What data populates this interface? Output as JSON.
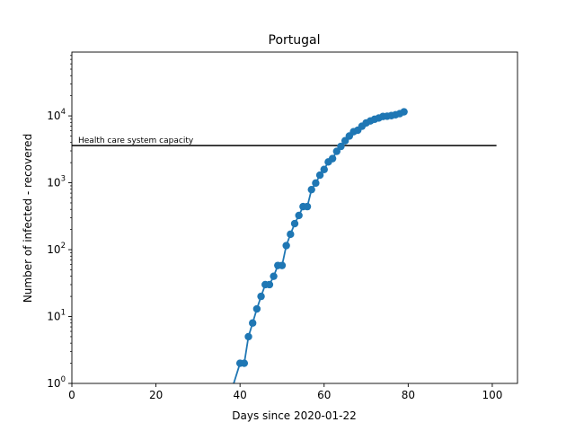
{
  "chart_data": {
    "type": "line",
    "title": "Portugal",
    "xlabel": "Days since 2020-01-22",
    "ylabel": "Number of infected - recovered",
    "yscale": "log",
    "xlim": [
      0,
      106
    ],
    "ylim": [
      1,
      90000
    ],
    "grid": false,
    "x_ticks": [
      0,
      20,
      40,
      60,
      80,
      100
    ],
    "x_tick_labels": [
      "0",
      "20",
      "40",
      "60",
      "80",
      "100"
    ],
    "y_ticks": [
      1,
      10,
      100,
      1000,
      10000
    ],
    "y_tick_labels": [
      "10^0",
      "10^1",
      "10^2",
      "10^3",
      "10^4"
    ],
    "series": [
      {
        "color": "#1f77b4",
        "marker": "circle",
        "x": [
          37,
          40,
          41,
          42,
          43,
          44,
          45,
          46,
          47,
          48,
          49,
          50,
          51,
          52,
          53,
          54,
          55,
          56,
          57,
          58,
          59,
          60,
          61,
          62,
          63,
          64,
          65,
          66,
          67,
          68,
          69,
          70,
          71,
          72,
          73,
          74,
          75,
          76,
          77,
          78,
          79
        ],
        "y": [
          0.5,
          2,
          2,
          5,
          8,
          13,
          20,
          30,
          30,
          40,
          58,
          58,
          115,
          170,
          245,
          325,
          440,
          440,
          790,
          990,
          1300,
          1580,
          2050,
          2300,
          2950,
          3500,
          4250,
          5000,
          5800,
          6100,
          7000,
          7850,
          8400,
          8900,
          9300,
          9800,
          9900,
          10100,
          10400,
          10800,
          11500
        ]
      }
    ],
    "hline": {
      "y": 3600,
      "x_start": 0,
      "x_end": 101,
      "color": "#000000",
      "label": "Health care system capacity"
    }
  }
}
